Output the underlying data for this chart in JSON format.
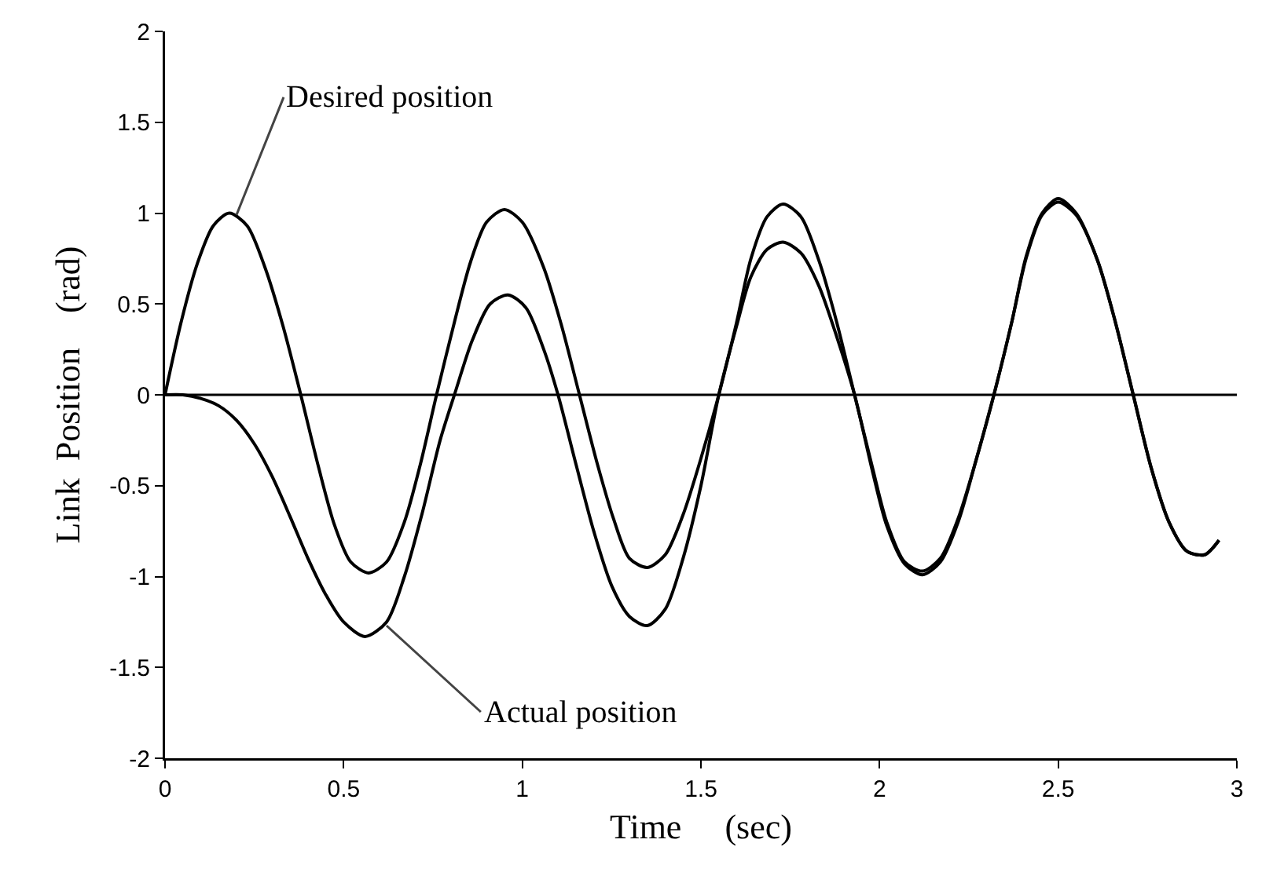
{
  "chart_data": {
    "type": "line",
    "xlabel": "Time     (sec)",
    "ylabel": "Link  Position    (rad)",
    "xlim": [
      0,
      3
    ],
    "xticks": [
      0,
      0.5,
      1,
      1.5,
      2,
      2.5,
      3
    ],
    "ylim": [
      -2,
      2
    ],
    "yticks": [
      -2,
      -1.5,
      -1,
      -0.5,
      0,
      0.5,
      1,
      1.5,
      2
    ],
    "grid": false,
    "marker": "none",
    "line_style": "solid",
    "ref_lines": [
      {
        "axis": "y",
        "value": 0,
        "color": "#000000"
      }
    ],
    "annotations": [
      {
        "text": "Desired position",
        "x": 0.2,
        "y": 0.99
      },
      {
        "text": "Actual position",
        "x": 0.62,
        "y": -1.27
      }
    ],
    "series": [
      {
        "color": "#000000",
        "x": [
          0,
          0.045,
          0.09,
          0.135,
          0.18,
          0.23,
          0.28,
          0.33,
          0.38,
          0.43,
          0.475,
          0.52,
          0.57,
          0.62,
          0.67,
          0.715,
          0.76,
          0.81,
          0.855,
          0.9,
          0.95,
          1.0,
          1.06,
          1.11,
          1.16,
          1.21,
          1.255,
          1.3,
          1.35,
          1.4,
          1.45,
          1.5,
          1.55,
          1.6,
          1.64,
          1.685,
          1.73,
          1.78,
          1.83,
          1.88,
          1.93,
          1.98,
          2.02,
          2.07,
          2.12,
          2.17,
          2.22,
          2.27,
          2.32,
          2.37,
          2.41,
          2.455,
          2.5,
          2.55,
          2.61,
          2.66,
          2.71,
          2.76,
          2.81,
          2.86,
          2.91,
          2.95
        ],
        "values": [
          0,
          0.4,
          0.72,
          0.93,
          1.0,
          0.93,
          0.7,
          0.38,
          0,
          -0.4,
          -0.72,
          -0.92,
          -0.98,
          -0.92,
          -0.7,
          -0.38,
          0,
          0.4,
          0.73,
          0.95,
          1.02,
          0.95,
          0.7,
          0.38,
          0,
          -0.38,
          -0.68,
          -0.9,
          -0.95,
          -0.88,
          -0.66,
          -0.35,
          0,
          0.4,
          0.75,
          0.98,
          1.05,
          0.98,
          0.74,
          0.4,
          0,
          -0.4,
          -0.7,
          -0.92,
          -0.97,
          -0.9,
          -0.68,
          -0.36,
          0,
          0.4,
          0.76,
          1.0,
          1.08,
          1.0,
          0.74,
          0.4,
          0,
          -0.4,
          -0.7,
          -0.86,
          -0.88,
          -0.8
        ]
      },
      {
        "color": "#000000",
        "x": [
          0,
          0.05,
          0.1,
          0.15,
          0.2,
          0.25,
          0.3,
          0.35,
          0.4,
          0.45,
          0.5,
          0.56,
          0.62,
          0.67,
          0.72,
          0.77,
          0.81,
          0.86,
          0.91,
          0.96,
          1.01,
          1.06,
          1.1,
          1.15,
          1.2,
          1.25,
          1.3,
          1.35,
          1.4,
          1.45,
          1.5,
          1.55,
          1.6,
          1.64,
          1.685,
          1.73,
          1.78,
          1.83,
          1.88,
          1.93,
          1.98,
          2.02,
          2.07,
          2.12,
          2.17,
          2.22,
          2.27,
          2.32,
          2.37,
          2.41,
          2.455,
          2.5,
          2.55,
          2.61,
          2.66,
          2.71,
          2.76,
          2.81,
          2.86,
          2.91,
          2.95
        ],
        "values": [
          0,
          0,
          -0.02,
          -0.06,
          -0.14,
          -0.27,
          -0.45,
          -0.67,
          -0.9,
          -1.1,
          -1.25,
          -1.33,
          -1.25,
          -1.0,
          -0.65,
          -0.25,
          0,
          0.3,
          0.5,
          0.55,
          0.48,
          0.25,
          0,
          -0.38,
          -0.75,
          -1.05,
          -1.22,
          -1.27,
          -1.18,
          -0.9,
          -0.5,
          0,
          0.38,
          0.65,
          0.8,
          0.84,
          0.78,
          0.6,
          0.32,
          0,
          -0.42,
          -0.72,
          -0.93,
          -0.99,
          -0.92,
          -0.7,
          -0.36,
          0,
          0.4,
          0.75,
          0.99,
          1.06,
          0.99,
          0.74,
          0.4,
          0,
          -0.4,
          -0.7,
          -0.86,
          -0.88,
          -0.8
        ]
      }
    ]
  }
}
